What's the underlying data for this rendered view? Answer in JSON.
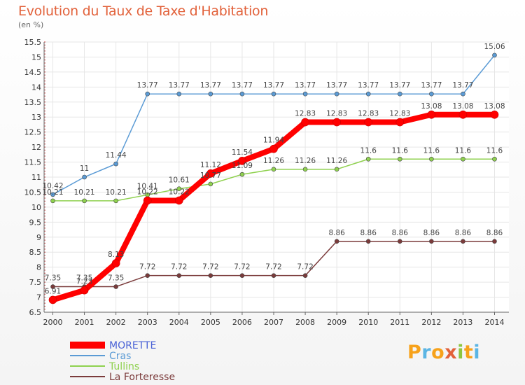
{
  "title": "Evolution du Taux de Taxe d'Habitation",
  "unit": "(en %)",
  "logo": {
    "letters": [
      "P",
      "r",
      "o",
      "x",
      "i",
      "t",
      "i"
    ],
    "colors": [
      "#f7a21b",
      "#5bb5e4",
      "#f7a21b",
      "#e2613a",
      "#8dc63f",
      "#f7a21b",
      "#5bb5e4"
    ]
  },
  "chart_data": {
    "type": "line",
    "title": "Evolution du Taux de Taxe d'Habitation",
    "ylabel": "(en %)",
    "xlabel": "",
    "ylim": [
      6.5,
      15.5
    ],
    "ytick_step": 0.5,
    "yticks": [
      "6.5",
      "7",
      "7.5",
      "8",
      "8.5",
      "9",
      "9.5",
      "10",
      "10.5",
      "11",
      "11.5",
      "12",
      "12.5",
      "13",
      "13.5",
      "14",
      "14.5",
      "15",
      "15.5"
    ],
    "x": [
      "2000",
      "2001",
      "2002",
      "2003",
      "2004",
      "2005",
      "2006",
      "2007",
      "2008",
      "2009",
      "2010",
      "2011",
      "2012",
      "2013",
      "2014"
    ],
    "grid": true,
    "legend": "bottom-left",
    "series": [
      {
        "name": "MORETTE",
        "color": "#ff0000",
        "values": [
          6.91,
          7.23,
          8.13,
          10.22,
          10.22,
          11.12,
          11.54,
          11.94,
          12.83,
          12.83,
          12.83,
          12.83,
          13.08,
          13.08,
          13.08
        ],
        "labels": [
          "6.91",
          "7.23",
          "8.13",
          "10.22",
          "10.22",
          "11.12",
          "11.54",
          "11.94",
          "12.83",
          "12.83",
          "12.83",
          "12.83",
          "13.08",
          "13.08",
          "13.08"
        ],
        "labeled_points": [
          0,
          1,
          2,
          3,
          4,
          5,
          6,
          7,
          8,
          9,
          10,
          11,
          12,
          13,
          14
        ]
      },
      {
        "name": "Cras",
        "color": "#5b9bd5",
        "values": [
          10.42,
          11,
          11.44,
          13.77,
          13.77,
          13.77,
          13.77,
          13.77,
          13.77,
          13.77,
          13.77,
          13.77,
          13.77,
          13.77,
          15.06
        ],
        "labels": [
          "10.42",
          "11",
          "11.44",
          "13.77",
          "13.77",
          "13.77",
          "13.77",
          "13.77",
          "13.77",
          "13.77",
          "13.77",
          "13.77",
          "13.77",
          "13.77",
          "15.06"
        ],
        "labeled_points": [
          0,
          1,
          2,
          3,
          4,
          5,
          6,
          7,
          8,
          9,
          10,
          11,
          12,
          13,
          14
        ]
      },
      {
        "name": "Tullins",
        "color": "#8fd14f",
        "values": [
          10.21,
          10.21,
          10.21,
          10.41,
          10.61,
          10.77,
          11.09,
          11.26,
          11.26,
          11.26,
          11.6,
          11.6,
          11.6,
          11.6,
          11.6
        ],
        "labels": [
          "10.21",
          "10.21",
          "10.21",
          "10.41",
          "10.61",
          "10.77",
          "11.09",
          "11.26",
          "11.26",
          "11.26",
          "11.6",
          "11.6",
          "11.6",
          "11.6",
          "11.6"
        ],
        "labeled_points": [
          0,
          1,
          2,
          3,
          4,
          5,
          6,
          7,
          8,
          9,
          10,
          11,
          12,
          13,
          14
        ]
      },
      {
        "name": "La Forteresse",
        "color": "#7b3b3b",
        "values": [
          7.35,
          7.35,
          7.35,
          7.72,
          7.72,
          7.72,
          7.72,
          7.72,
          7.72,
          8.86,
          8.86,
          8.86,
          8.86,
          8.86,
          8.86
        ],
        "labels": [
          "7.35",
          "7.35",
          "7.35",
          "7.72",
          "7.72",
          "7.72",
          "7.72",
          "7.72",
          "7.72",
          "8.86",
          "8.86",
          "8.86",
          "8.86",
          "8.86",
          "8.86"
        ],
        "labeled_points": [
          0,
          1,
          2,
          3,
          4,
          5,
          6,
          7,
          8,
          9,
          10,
          11,
          12,
          13,
          14
        ]
      }
    ]
  }
}
